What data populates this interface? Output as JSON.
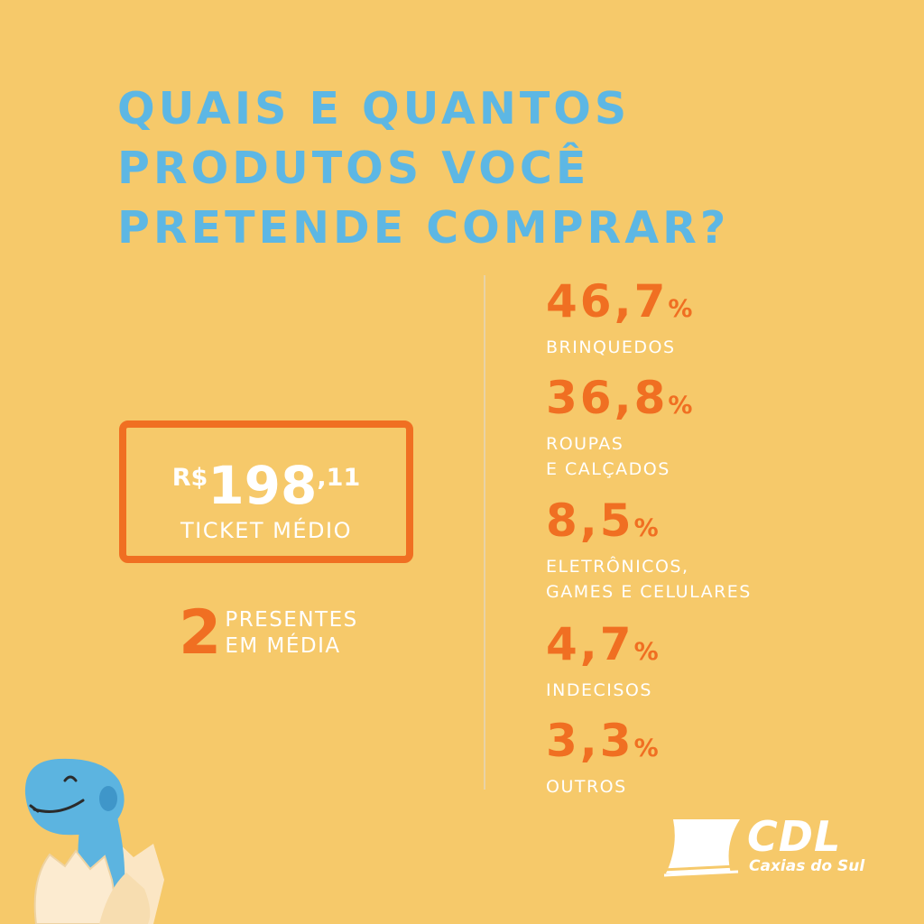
{
  "title": {
    "line1": "QUAIS E QUANTOS",
    "line2": "PRODUTOS VOCÊ",
    "line3": "PRETENDE COMPRAR?"
  },
  "ticket": {
    "currency": "R$",
    "integer": "198",
    "decimal": ",11",
    "label": "TICKET MÉDIO"
  },
  "gifts": {
    "number": "2",
    "line1": "PRESENTES",
    "line2": "EM MÉDIA"
  },
  "stats": [
    {
      "value": "46,7",
      "unit": "%",
      "label_lines": [
        "BRINQUEDOS"
      ]
    },
    {
      "value": "36,8",
      "unit": "%",
      "label_lines": [
        "ROUPAS",
        "E CALÇADOS"
      ]
    },
    {
      "value": "8,5",
      "unit": "%",
      "label_lines": [
        "ELETRÔNICOS,",
        "GAMES E CELULARES"
      ]
    },
    {
      "value": "4,7",
      "unit": "%",
      "label_lines": [
        "INDECISOS"
      ]
    },
    {
      "value": "3,3",
      "unit": "%",
      "label_lines": [
        "OUTROS"
      ]
    }
  ],
  "logo": {
    "name": "CDL",
    "city": "Caxias do Sul"
  },
  "colors": {
    "background": "#F6C96A",
    "title": "#5DB7E4",
    "accent": "#F06F22",
    "text": "#FFFFFF"
  },
  "icons": {
    "mascot": "dinosaur-hatching-egg-icon",
    "logo": "cdl-sail-icon"
  }
}
